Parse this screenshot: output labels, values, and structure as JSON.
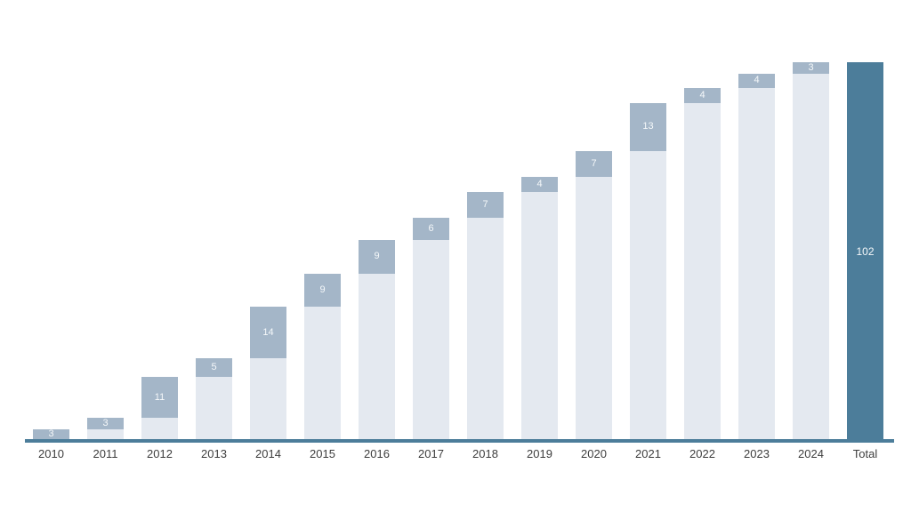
{
  "chart_data": {
    "type": "bar",
    "subtype": "stacked-waterfall-cumulative",
    "title": "",
    "xlabel": "",
    "ylabel": "",
    "grid": "off",
    "legend": "none",
    "ylim": [
      0,
      102
    ],
    "categories": [
      "2010",
      "2011",
      "2012",
      "2013",
      "2014",
      "2015",
      "2016",
      "2017",
      "2018",
      "2019",
      "2020",
      "2021",
      "2022",
      "2023",
      "2024"
    ],
    "series": [
      {
        "name": "cumulative-base-previous-years",
        "values": [
          0,
          3,
          6,
          17,
          22,
          36,
          45,
          54,
          60,
          67,
          71,
          78,
          91,
          95,
          99
        ]
      },
      {
        "name": "yearly-increment",
        "values": [
          3,
          3,
          11,
          5,
          14,
          9,
          9,
          6,
          7,
          4,
          7,
          13,
          4,
          4,
          3
        ]
      }
    ],
    "increment_labels": [
      "3",
      "3",
      "11",
      "5",
      "14",
      "9",
      "9",
      "6",
      "7",
      "4",
      "7",
      "13",
      "4",
      "4",
      "3"
    ],
    "cumulative_after": [
      3,
      6,
      17,
      22,
      36,
      45,
      54,
      60,
      67,
      71,
      78,
      91,
      95,
      99,
      102
    ],
    "total": {
      "label": "Total",
      "value": 102,
      "value_label": "102"
    },
    "colors": {
      "increment_segment": "#a4b6c8",
      "base_segment": "#e4e9f0",
      "total_bar": "#4c7d9a",
      "axis_line": "#4c7d9a",
      "bar_value_text": "#f5f8fa",
      "axis_label_text": "#3d3d3d",
      "background": "#ffffff"
    }
  }
}
